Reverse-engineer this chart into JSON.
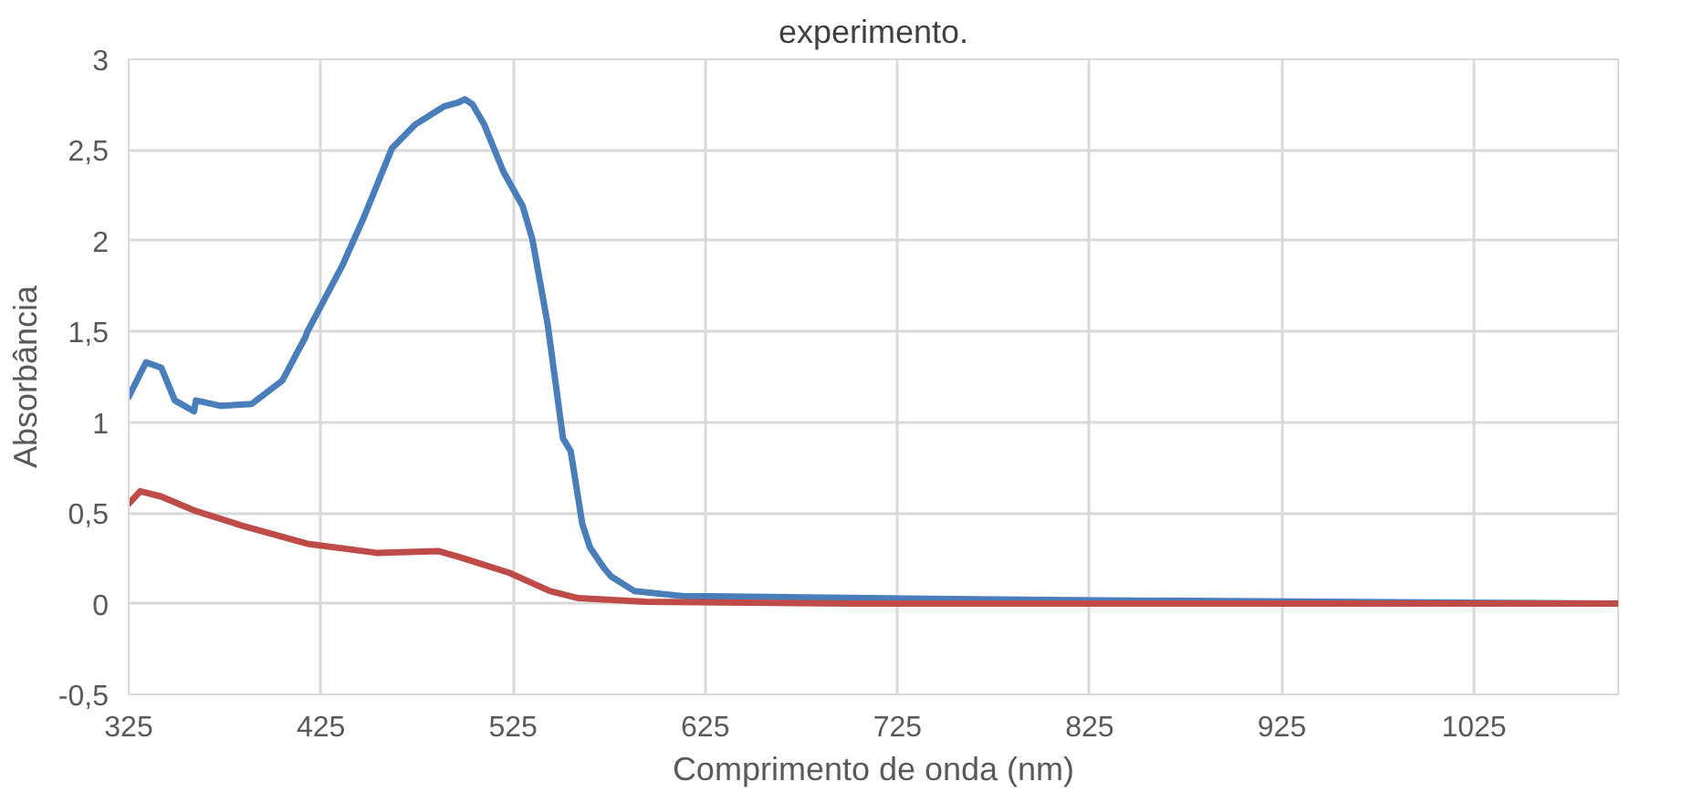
{
  "chart_data": {
    "type": "line",
    "title": "experimento.",
    "xlabel": "Comprimento de onda (nm)",
    "ylabel": "Absorbância",
    "xlim": [
      325,
      1100
    ],
    "xticks": [
      325,
      425,
      525,
      625,
      725,
      825,
      925,
      1025
    ],
    "ylim": [
      -0.5,
      3
    ],
    "yticks": [
      {
        "value": -0.5,
        "label": "-0,5"
      },
      0,
      {
        "value": 0.5,
        "label": "0,5"
      },
      1,
      {
        "value": 1.5,
        "label": "1,5"
      },
      2,
      {
        "value": 2.5,
        "label": "2,5"
      },
      3
    ],
    "grid": true,
    "marker": "none",
    "line_style": "solid",
    "series": [
      {
        "color": "#4a7ebb",
        "x": [
          325,
          334,
          342,
          349,
          359,
          360,
          373,
          389,
          405,
          417,
          418,
          436,
          447,
          462,
          474,
          489,
          496,
          500,
          504,
          510,
          520,
          530,
          535,
          543,
          551,
          555,
          561,
          565,
          572,
          576,
          588,
          615,
          628,
          803,
          1100
        ],
        "values": [
          1.14,
          1.33,
          1.3,
          1.12,
          1.06,
          1.12,
          1.09,
          1.1,
          1.23,
          1.47,
          1.5,
          1.86,
          2.12,
          2.51,
          2.64,
          2.74,
          2.76,
          2.78,
          2.75,
          2.64,
          2.38,
          2.19,
          2.01,
          1.54,
          0.91,
          0.84,
          0.44,
          0.31,
          0.2,
          0.15,
          0.07,
          0.04,
          0.04,
          0.02,
          0.0
        ]
      },
      {
        "color": "#be4b48",
        "x": [
          325,
          331,
          342,
          360,
          384,
          418,
          454,
          486,
          496,
          523,
          544,
          559,
          594,
          700,
          1100
        ],
        "values": [
          0.55,
          0.62,
          0.59,
          0.51,
          0.43,
          0.33,
          0.28,
          0.29,
          0.26,
          0.17,
          0.07,
          0.03,
          0.01,
          0.0,
          0.0
        ]
      }
    ]
  }
}
